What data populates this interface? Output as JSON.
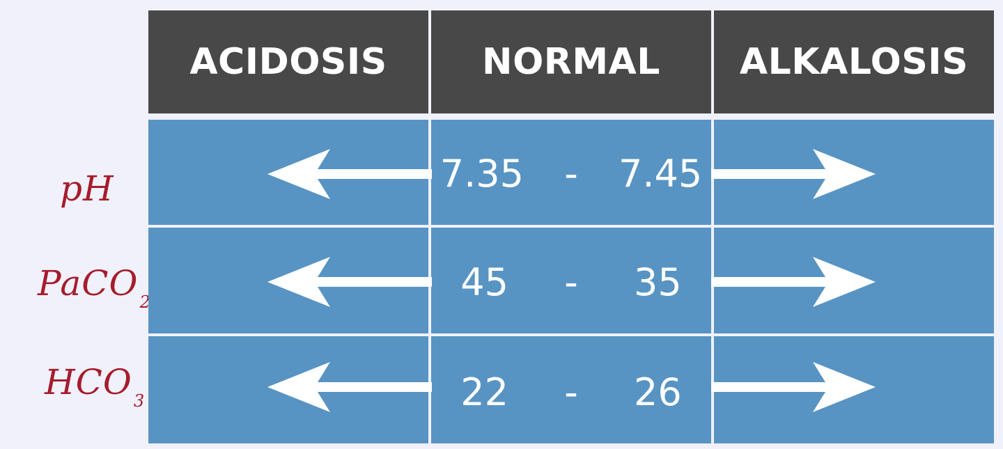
{
  "headers": {
    "acidosis": "ACIDOSIS",
    "normal": "NORMAL",
    "alkalosis": "ALKALOSIS"
  },
  "rows": [
    {
      "label": "pH",
      "label_subscript": "",
      "low": "7.35",
      "separator": "-",
      "high": "7.45"
    },
    {
      "label": "PaCO",
      "label_subscript": "2",
      "low": "45",
      "separator": "-",
      "high": "35"
    },
    {
      "label": "HCO",
      "label_subscript": "3",
      "low": "22",
      "separator": "-",
      "high": "26"
    }
  ],
  "icons": {
    "acidosis_direction": "arrow-left-icon",
    "alkalosis_direction": "arrow-right-icon"
  },
  "colors": {
    "background": "#f0f1fb",
    "header_fill": "#484848",
    "cell_fill": "#5894c3",
    "grid_line": "#ffffff",
    "label_ink": "#a61c2c"
  }
}
